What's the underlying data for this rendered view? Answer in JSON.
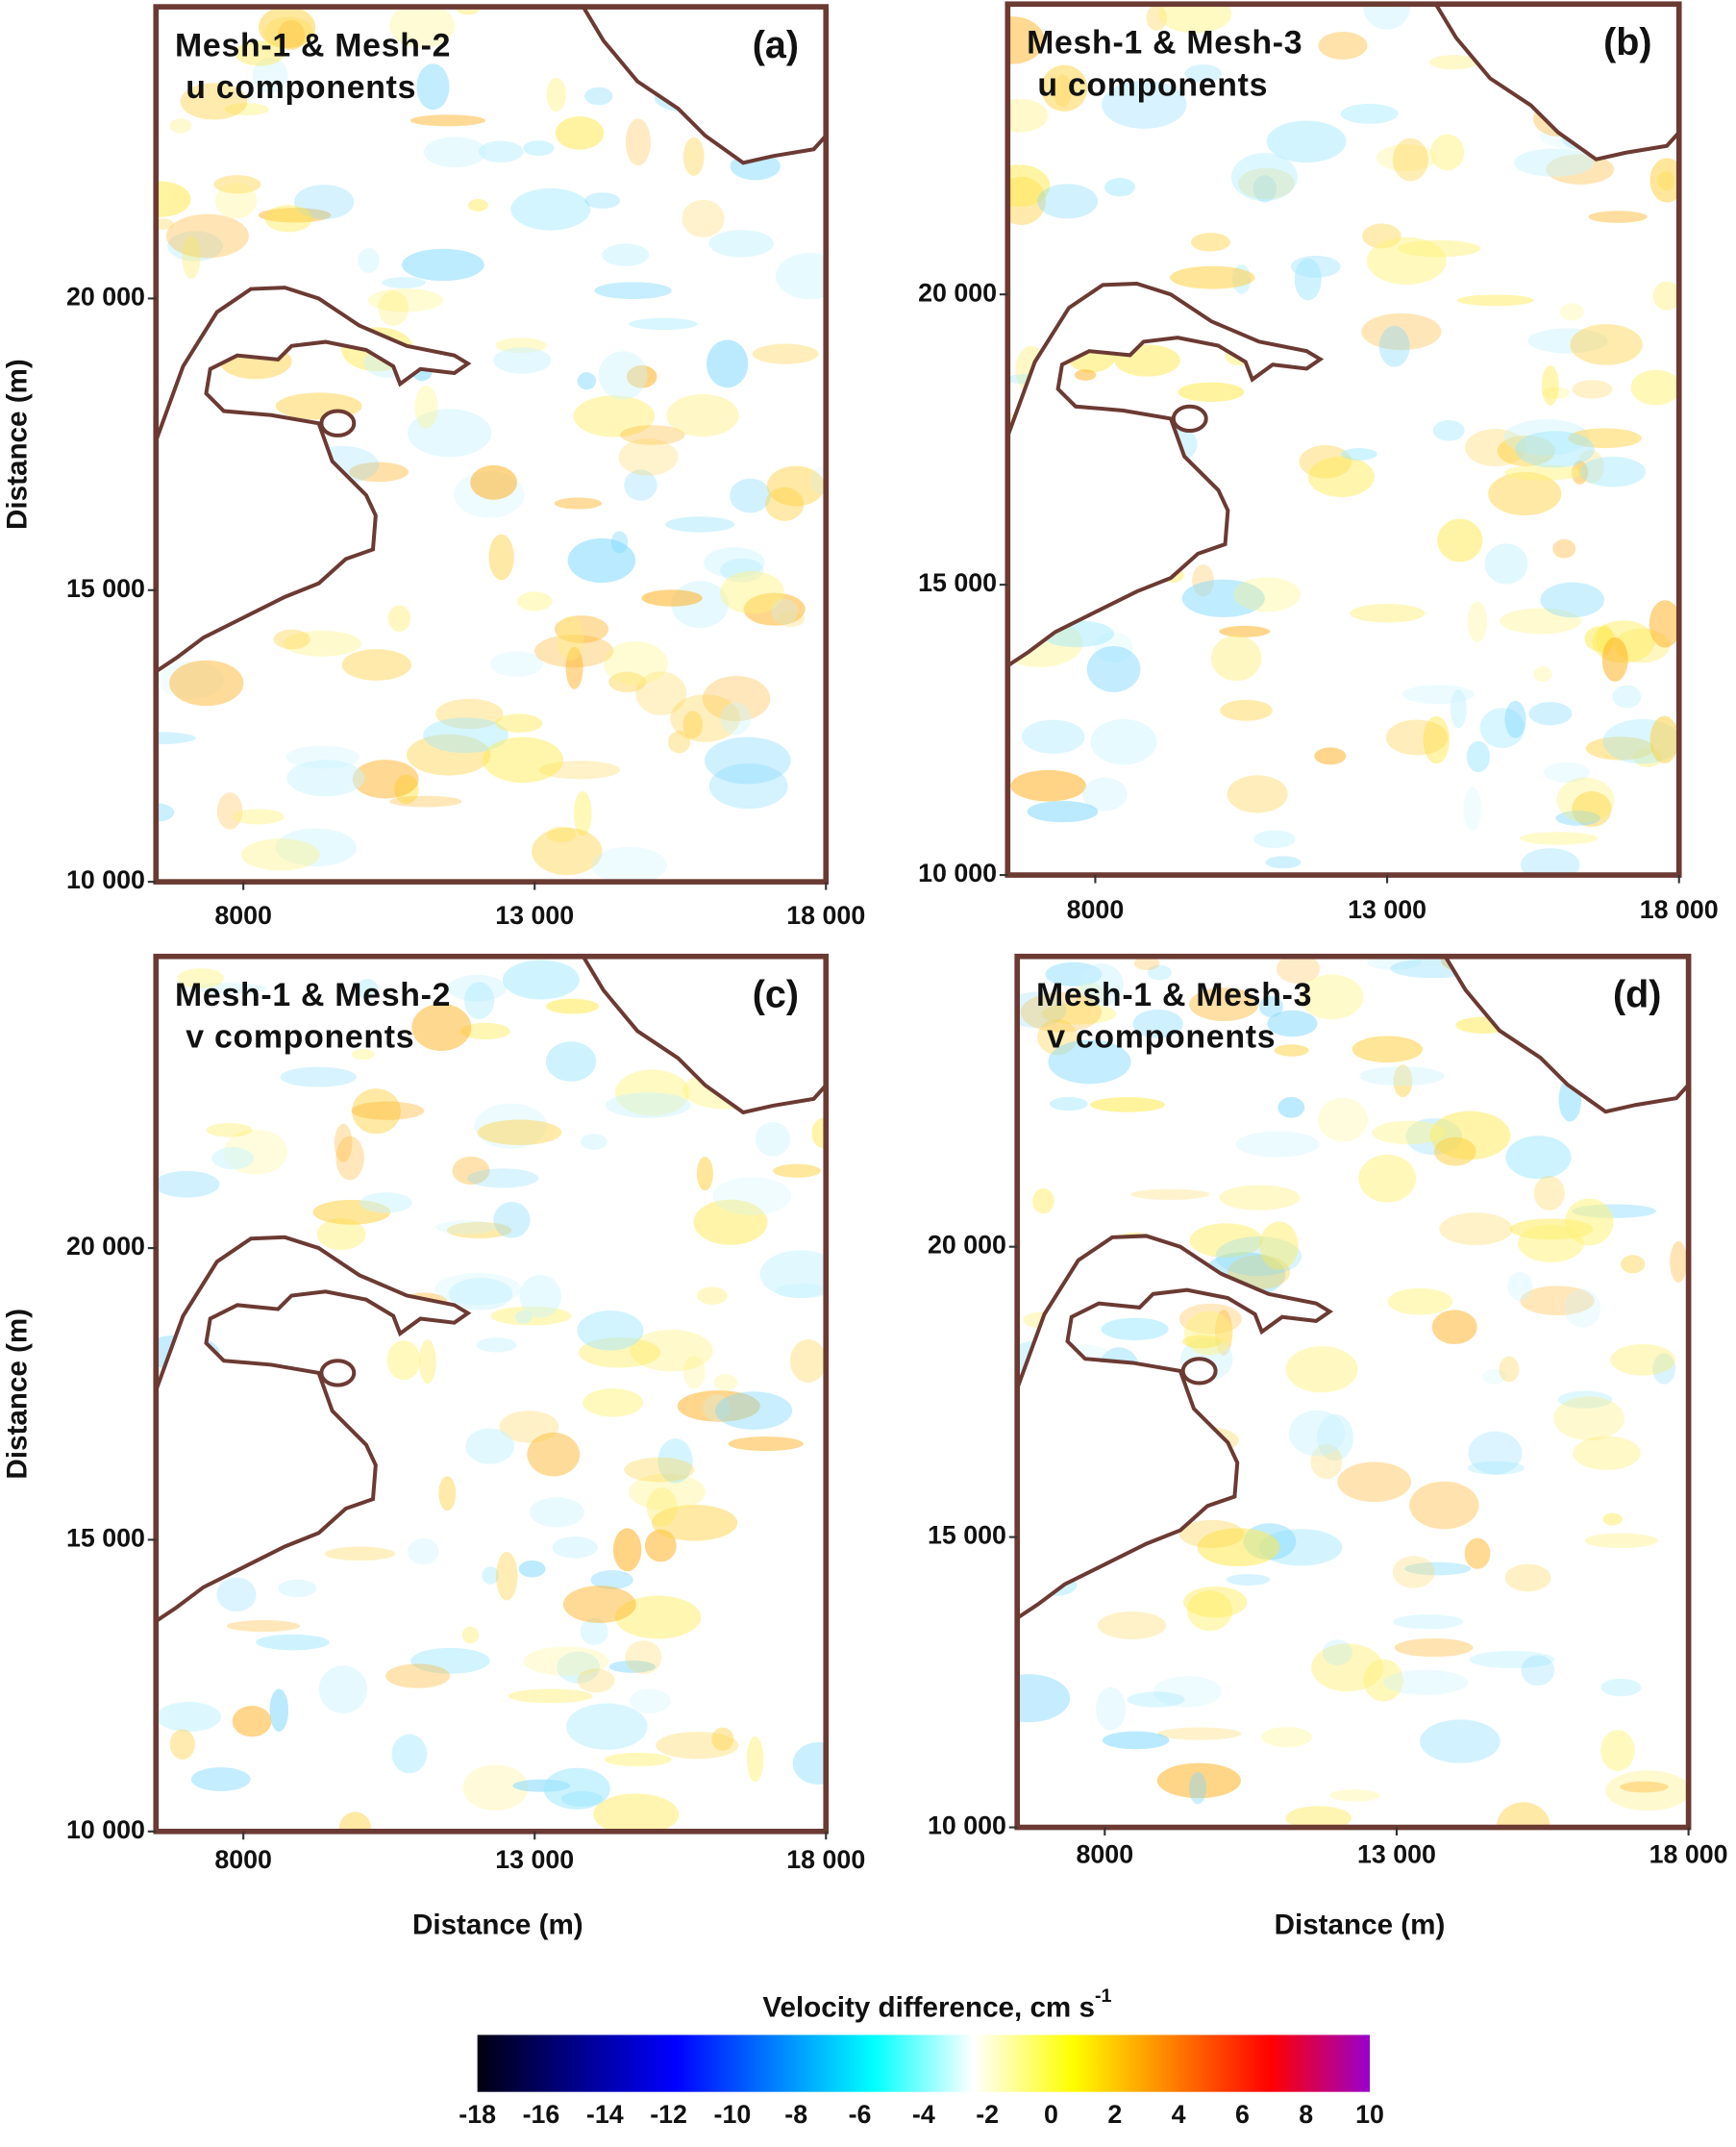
{
  "chart_data": [
    {
      "type": "heatmap",
      "title": [
        "Mesh-1 & Mesh-2",
        "u components"
      ],
      "panel_label": "(a)",
      "ylabel": "Distance (m)",
      "xlim": [
        6500,
        18000
      ],
      "xticks": [
        8000,
        {
          "value": 13000,
          "label": "13 000"
        },
        {
          "value": 18000,
          "label": "18 000"
        }
      ],
      "ylim": [
        10000,
        25000
      ],
      "yticks": [
        {
          "value": 10000,
          "label": "10 000"
        },
        {
          "value": 15000,
          "label": "15 000"
        },
        {
          "value": 20000,
          "label": "20 000"
        }
      ]
    },
    {
      "type": "heatmap",
      "title": [
        "Mesh-1 & Mesh-3",
        "u components"
      ],
      "panel_label": "(b)",
      "xlim": [
        6500,
        18000
      ],
      "xticks": [
        8000,
        {
          "value": 13000,
          "label": "13 000"
        },
        {
          "value": 18000,
          "label": "18 000"
        }
      ],
      "ylim": [
        10000,
        25000
      ],
      "yticks": [
        {
          "value": 10000,
          "label": "10 000"
        },
        {
          "value": 15000,
          "label": "15 000"
        },
        {
          "value": 20000,
          "label": "20 000"
        }
      ]
    },
    {
      "type": "heatmap",
      "title": [
        "Mesh-1 & Mesh-2",
        "v components"
      ],
      "panel_label": "(c)",
      "xlabel": "Distance (m)",
      "ylabel": "Distance (m)",
      "xlim": [
        6500,
        18000
      ],
      "xticks": [
        8000,
        {
          "value": 13000,
          "label": "13 000"
        },
        {
          "value": 18000,
          "label": "18 000"
        }
      ],
      "ylim": [
        10000,
        25000
      ],
      "yticks": [
        {
          "value": 10000,
          "label": "10 000"
        },
        {
          "value": 15000,
          "label": "15 000"
        },
        {
          "value": 20000,
          "label": "20 000"
        }
      ]
    },
    {
      "type": "heatmap",
      "title": [
        "Mesh-1 & Mesh-3",
        "v components"
      ],
      "panel_label": "(d)",
      "xlabel": "Distance (m)",
      "xlim": [
        6500,
        18000
      ],
      "xticks": [
        8000,
        {
          "value": 13000,
          "label": "13 000"
        },
        {
          "value": 18000,
          "label": "18 000"
        }
      ],
      "ylim": [
        10000,
        25000
      ],
      "yticks": [
        {
          "value": 10000,
          "label": "10 000"
        },
        {
          "value": 15000,
          "label": "15 000"
        },
        {
          "value": 20000,
          "label": "20 000"
        }
      ]
    },
    {
      "type": "colorbar",
      "label": "Velocity difference, cm s",
      "label_exponent": "-1",
      "lim": [
        -18,
        10
      ],
      "ticks": [
        -18,
        -16,
        -14,
        -12,
        -10,
        -8,
        -6,
        -4,
        -2,
        0,
        2,
        4,
        6,
        8,
        10
      ],
      "colors": [
        "#000010",
        "#00008b",
        "#0000ff",
        "#0080ff",
        "#00ffff",
        "#ffffff",
        "#ffff00",
        "#ff8000",
        "#ff0000",
        "#9900cc"
      ]
    }
  ]
}
